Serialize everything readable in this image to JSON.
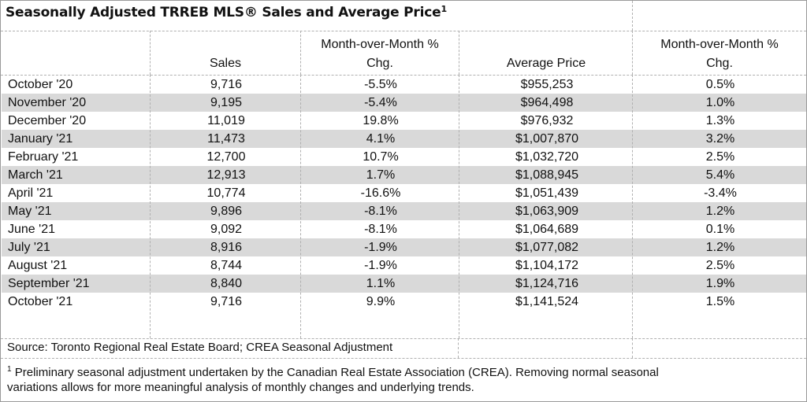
{
  "title": "Seasonally Adjusted TRREB MLS® Sales and Average Price",
  "title_sup": "1",
  "headers": {
    "sales": "Sales",
    "mom_sales_line1": "Month-over-Month %",
    "mom_sales_line2": "Chg.",
    "avg_price": "Average Price",
    "mom_price_line1": "Month-over-Month %",
    "mom_price_line2": "Chg."
  },
  "rows": [
    {
      "month": "October '20",
      "sales": "9,716",
      "sales_chg": "-5.5%",
      "price": "$955,253",
      "price_chg": "0.5%"
    },
    {
      "month": "November '20",
      "sales": "9,195",
      "sales_chg": "-5.4%",
      "price": "$964,498",
      "price_chg": "1.0%"
    },
    {
      "month": "December '20",
      "sales": "11,019",
      "sales_chg": "19.8%",
      "price": "$976,932",
      "price_chg": "1.3%"
    },
    {
      "month": "January '21",
      "sales": "11,473",
      "sales_chg": "4.1%",
      "price": "$1,007,870",
      "price_chg": "3.2%"
    },
    {
      "month": "February '21",
      "sales": "12,700",
      "sales_chg": "10.7%",
      "price": "$1,032,720",
      "price_chg": "2.5%"
    },
    {
      "month": "March '21",
      "sales": "12,913",
      "sales_chg": "1.7%",
      "price": "$1,088,945",
      "price_chg": "5.4%"
    },
    {
      "month": "April '21",
      "sales": "10,774",
      "sales_chg": "-16.6%",
      "price": "$1,051,439",
      "price_chg": "-3.4%"
    },
    {
      "month": "May '21",
      "sales": "9,896",
      "sales_chg": "-8.1%",
      "price": "$1,063,909",
      "price_chg": "1.2%"
    },
    {
      "month": "June '21",
      "sales": "9,092",
      "sales_chg": "-8.1%",
      "price": "$1,064,689",
      "price_chg": "0.1%"
    },
    {
      "month": "July '21",
      "sales": "8,916",
      "sales_chg": "-1.9%",
      "price": "$1,077,082",
      "price_chg": "1.2%"
    },
    {
      "month": "August '21",
      "sales": "8,744",
      "sales_chg": "-1.9%",
      "price": "$1,104,172",
      "price_chg": "2.5%"
    },
    {
      "month": "September '21",
      "sales": "8,840",
      "sales_chg": "1.1%",
      "price": "$1,124,716",
      "price_chg": "1.9%"
    },
    {
      "month": "October '21",
      "sales": "9,716",
      "sales_chg": "9.9%",
      "price": "$1,141,524",
      "price_chg": "1.5%"
    }
  ],
  "source": "Source: Toronto Regional Real Estate Board; CREA Seasonal Adjustment",
  "footnote_sup": "1",
  "footnote_line1": "Preliminary seasonal adjustment undertaken by the Canadian Real Estate Association (CREA).  Removing normal seasonal",
  "footnote_line2": "variations allows for more meaningful analysis of monthly changes and underlying trends.",
  "colors": {
    "shaded_row": "#d9d9d9",
    "grid": "#b0b0b0"
  }
}
